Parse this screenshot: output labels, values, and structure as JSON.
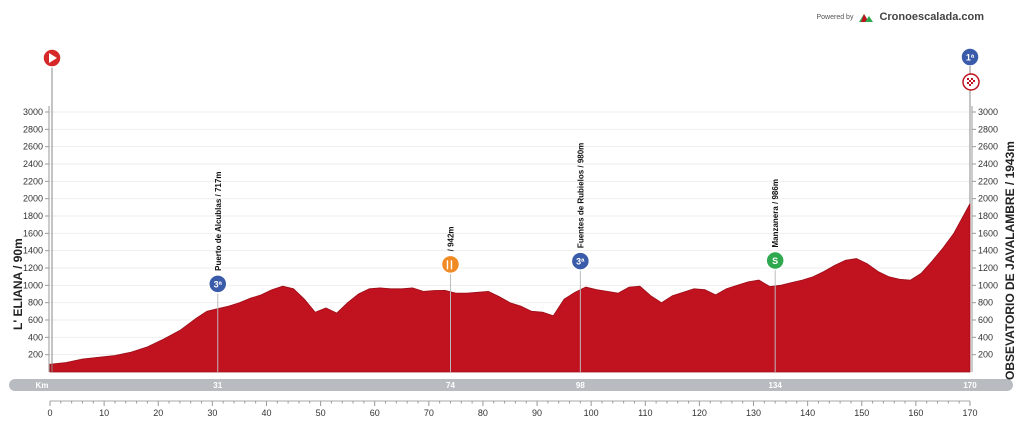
{
  "branding": {
    "powered_by": "Powered by",
    "site": "Cronoescalada.com"
  },
  "start": {
    "label": "L' ELIANA / 90m"
  },
  "finish": {
    "label": "OBSEVATORIO DE JAVALAMBRE / 1943m"
  },
  "km_bar_label": "Km",
  "colors": {
    "profile": "#c1121f",
    "km_bar": "#b8bcc0",
    "start_icon": "#d62828",
    "climb_icon": "#3a5ba9",
    "sprint_icon": "#2fa84f",
    "feed_icon": "#f08a24"
  },
  "chart_data": {
    "type": "area",
    "title": "",
    "xlabel": "",
    "ylabel": "",
    "xlim": [
      0,
      170
    ],
    "ylim": [
      0,
      3000
    ],
    "x_ticks": [
      0,
      10,
      20,
      30,
      40,
      50,
      60,
      70,
      80,
      90,
      100,
      110,
      120,
      130,
      140,
      150,
      160,
      170
    ],
    "y_ticks": [
      200,
      400,
      600,
      800,
      1000,
      1200,
      1400,
      1600,
      1800,
      2000,
      2200,
      2400,
      2600,
      2800,
      3000
    ],
    "series": [
      {
        "x": [
          0,
          3,
          6,
          9,
          12,
          15,
          18,
          21,
          24,
          27,
          29,
          31,
          33,
          35,
          37,
          39,
          41,
          43,
          45,
          47,
          49,
          51,
          53,
          55,
          57,
          59,
          61,
          63,
          65,
          67,
          69,
          71,
          73,
          75,
          77,
          79,
          81,
          83,
          85,
          87,
          89,
          91,
          93,
          95,
          97,
          99,
          101,
          103,
          105,
          107,
          109,
          111,
          113,
          115,
          117,
          119,
          121,
          123,
          125,
          127,
          129,
          131,
          133,
          135,
          137,
          139,
          141,
          143,
          145,
          147,
          149,
          151,
          153,
          155,
          157,
          159,
          161,
          163,
          165,
          167,
          170
        ],
        "y": [
          90,
          110,
          150,
          170,
          190,
          230,
          290,
          380,
          480,
          620,
          700,
          730,
          760,
          800,
          850,
          890,
          950,
          990,
          960,
          840,
          690,
          740,
          680,
          800,
          900,
          960,
          970,
          960,
          960,
          970,
          930,
          940,
          942,
          910,
          910,
          920,
          930,
          870,
          800,
          760,
          700,
          690,
          650,
          840,
          920,
          980,
          950,
          930,
          910,
          980,
          990,
          880,
          800,
          880,
          920,
          960,
          950,
          890,
          960,
          1000,
          1040,
          1060,
          986,
          1000,
          1030,
          1060,
          1100,
          1160,
          1230,
          1290,
          1310,
          1250,
          1160,
          1100,
          1070,
          1060,
          1140,
          1280,
          1430,
          1600,
          1943
        ]
      }
    ],
    "markers": [
      {
        "km": 31,
        "elevation": 717,
        "label": "Puerto de Alcublas / 717m",
        "category": "3ª",
        "type": "climb"
      },
      {
        "km": 74,
        "elevation": 942,
        "label": "/ 942m",
        "category": "",
        "type": "feed"
      },
      {
        "km": 98,
        "elevation": 980,
        "label": "Fuentes de Rubielos / 980m",
        "category": "3ª",
        "type": "climb"
      },
      {
        "km": 134,
        "elevation": 986,
        "label": "Manzanera / 986m",
        "category": "S",
        "type": "sprint"
      },
      {
        "km": 170,
        "elevation": 1943,
        "label": "",
        "category": "1ª",
        "type": "climb-finish"
      }
    ],
    "km_bar_values": [
      31,
      74,
      98,
      134,
      170
    ]
  }
}
